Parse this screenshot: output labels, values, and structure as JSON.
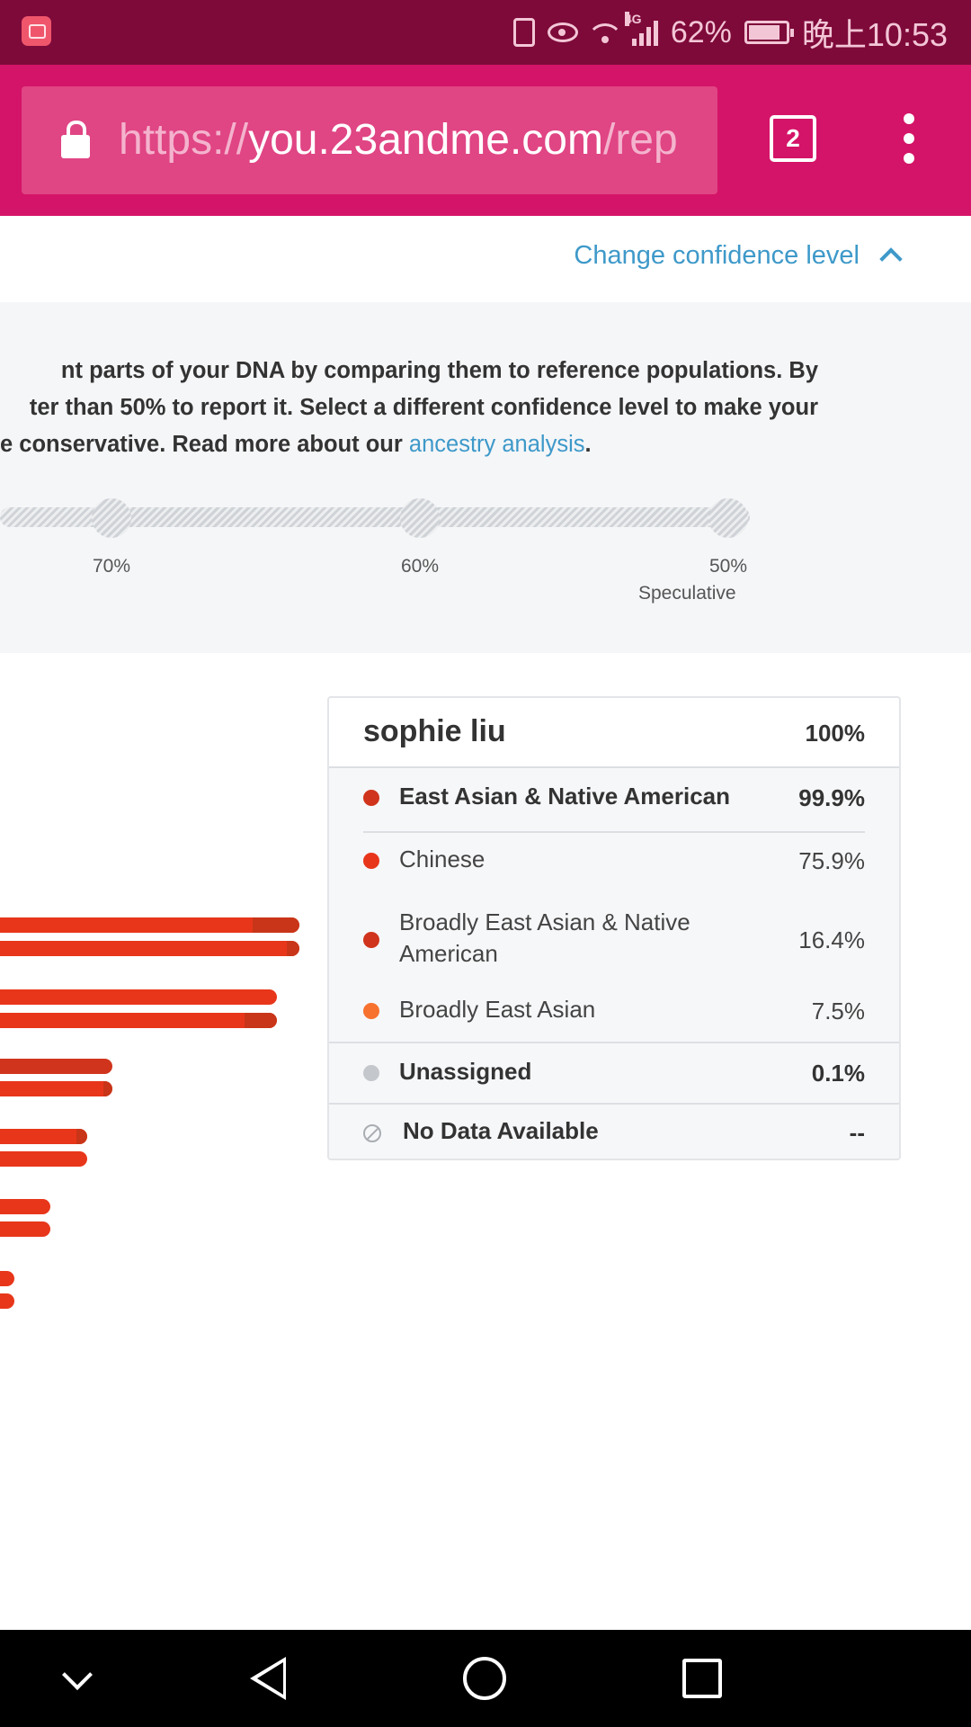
{
  "status_bar": {
    "network_label": "4G",
    "battery": "62%",
    "time": "晚上10:53"
  },
  "browser": {
    "url_scheme": "https://",
    "url_host": "you.23andme.com",
    "url_path": "/rep",
    "tab_count": "2"
  },
  "confidence": {
    "toggle_label": "Change confidence level",
    "description_lines": [
      "nt parts of your DNA by comparing them to reference populations. By",
      "ter than 50% to report it. Select a different confidence level to make your",
      "e conservative. Read more about our "
    ],
    "link_label": "ancestry analysis",
    "link_suffix": ".",
    "stops": [
      "70%",
      "60%",
      "50%"
    ],
    "stop_sublabel": "Speculative"
  },
  "summary": {
    "name": "sophie liu",
    "total": "100%",
    "rows": [
      {
        "label": "East Asian & Native American",
        "value": "99.9%",
        "color": "#d0341c"
      },
      {
        "label": "Chinese",
        "value": "75.9%",
        "color": "#e8361a"
      },
      {
        "label": "Broadly East Asian & Native American",
        "value": "16.4%",
        "color": "#d0341c"
      },
      {
        "label": "Broadly East Asian",
        "value": "7.5%",
        "color": "#f7722e"
      },
      {
        "label": "Unassigned",
        "value": "0.1%",
        "color": "#c4c7cb"
      },
      {
        "label": "No Data Available",
        "value": "--"
      }
    ]
  },
  "chromosome_bars_visible_fraction": [
    1.0,
    0.92,
    0.38,
    0.29,
    0.17,
    0.05
  ],
  "colors": {
    "status_bar": "#7e0a3a",
    "browser_bar": "#d41468",
    "link": "#3e99c9",
    "bar_red": "#e8361a"
  }
}
